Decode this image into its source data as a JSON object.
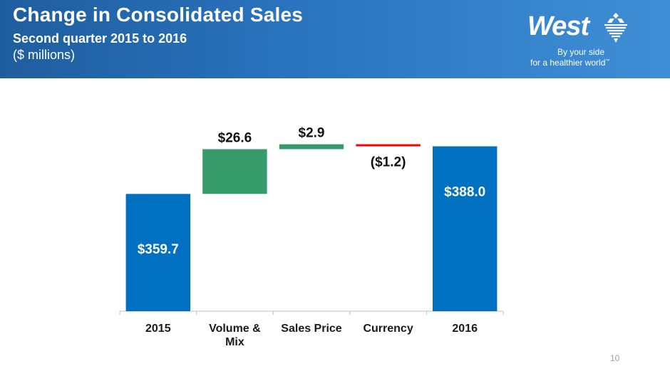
{
  "header": {
    "title": "Change in Consolidated Sales",
    "subtitle": "Second quarter 2015 to 2016",
    "units": "($ millions)"
  },
  "logo": {
    "wordmark": "West",
    "tagline_line1": "By your side",
    "tagline_line2": "for a healthier world",
    "trademark": "™"
  },
  "page_number": "10",
  "colors": {
    "header_blue": "#2a74bf",
    "total_bar": "#0070c0",
    "increase_bar": "#359b6a",
    "decrease_bar": "#ff0000",
    "label_dark": "#111111",
    "label_light": "#ffffff",
    "axis": "#bfbfbf"
  },
  "chart_data": {
    "type": "bar",
    "subtype": "waterfall",
    "categories": [
      "2015",
      "Volume & Mix",
      "Sales Price",
      "Currency",
      "2016"
    ],
    "category_label_lines": [
      [
        "2015"
      ],
      [
        "Volume &",
        "Mix"
      ],
      [
        "Sales Price"
      ],
      [
        "Currency"
      ],
      [
        "2016"
      ]
    ],
    "steps": [
      {
        "category": "2015",
        "kind": "total",
        "value": 359.7,
        "label": "$359.7"
      },
      {
        "category": "Volume & Mix",
        "kind": "change",
        "value": 26.6,
        "label": "$26.6"
      },
      {
        "category": "Sales Price",
        "kind": "change",
        "value": 2.9,
        "label": "$2.9"
      },
      {
        "category": "Currency",
        "kind": "change",
        "value": -1.2,
        "label": "($1.2)"
      },
      {
        "category": "2016",
        "kind": "total",
        "value": 388.0,
        "label": "$388.0"
      }
    ],
    "xlabel": "",
    "ylabel": "",
    "ylim": [
      290,
      392
    ],
    "grid": false,
    "legend": "none",
    "y_axis_visible": false
  }
}
